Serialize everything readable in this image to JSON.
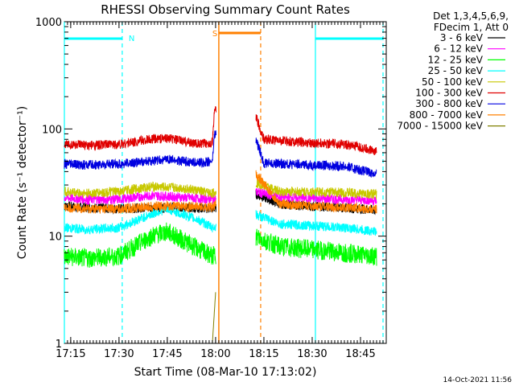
{
  "chart_data": {
    "type": "line",
    "title": "RHESSI Observing Summary Count Rates",
    "xlabel": "Start Time (08-Mar-10 17:13:02)",
    "ylabel": "Count Rate (s⁻¹ detector⁻¹)",
    "y_scale": "log",
    "ylim": [
      1,
      1000
    ],
    "xlim": [
      "17:13:02",
      "18:53:00"
    ],
    "x_ticks": [
      "17:15",
      "17:30",
      "17:45",
      "18:00",
      "18:15",
      "18:30",
      "18:45"
    ],
    "y_ticks": [
      "1",
      "10",
      "100",
      "1000"
    ],
    "legend_header": [
      "Det 1,3,4,5,6,9,",
      "FDecim 1, Att 0"
    ],
    "legend_position": "right",
    "timestamp": "14-Oct-2021 11:56",
    "data_gap": [
      "17:59:30",
      "18:12:30"
    ],
    "night_periods": [
      [
        "17:13:02",
        "17:31:00"
      ],
      [
        "18:31:00",
        "18:52:00"
      ]
    ],
    "annotations": [
      {
        "text": "N",
        "x": "17:31",
        "color": "#00ffff"
      },
      {
        "text": "S",
        "x": "17:59",
        "color": "#ff8000"
      }
    ],
    "series": [
      {
        "name": "3 - 6 keV",
        "color": "#000000",
        "x": [
          "17:13",
          "17:20",
          "17:30",
          "17:40",
          "17:50",
          "17:59",
          "18:12",
          "18:20",
          "18:30",
          "18:40",
          "18:50"
        ],
        "values": [
          19,
          18.5,
          18,
          18.5,
          18.5,
          18,
          25,
          20,
          19,
          18.5,
          17.5
        ]
      },
      {
        "name": "6 - 12 keV",
        "color": "#ff00ff",
        "x": [
          "17:13",
          "17:20",
          "17:30",
          "17:40",
          "17:50",
          "17:59",
          "18:12",
          "18:20",
          "18:30",
          "18:40",
          "18:50"
        ],
        "values": [
          23,
          22,
          22,
          24,
          23,
          22,
          26,
          23,
          22.5,
          22,
          21.5
        ]
      },
      {
        "name": "12 - 25 keV",
        "color": "#00ff00",
        "x": [
          "17:13",
          "17:20",
          "17:30",
          "17:40",
          "17:45",
          "17:55",
          "17:59",
          "18:12",
          "18:20",
          "18:30",
          "18:40",
          "18:50"
        ],
        "values": [
          6.5,
          6.2,
          6.5,
          10,
          11,
          7.5,
          6.5,
          10,
          8,
          7.5,
          7,
          6.5
        ]
      },
      {
        "name": "25 - 50 keV",
        "color": "#00ffff",
        "x": [
          "17:13",
          "17:20",
          "17:30",
          "17:40",
          "17:45",
          "17:55",
          "17:59",
          "18:12",
          "18:20",
          "18:30",
          "18:40",
          "18:50"
        ],
        "values": [
          12,
          11.5,
          12,
          16,
          18,
          14,
          12,
          16,
          13,
          12.5,
          12,
          11
        ]
      },
      {
        "name": "50 - 100 keV",
        "color": "#c8c800",
        "x": [
          "17:13",
          "17:20",
          "17:30",
          "17:40",
          "17:50",
          "17:59",
          "18:12",
          "18:20",
          "18:30",
          "18:40",
          "18:50"
        ],
        "values": [
          26,
          25,
          26,
          29,
          28,
          25,
          32,
          26,
          26,
          25.5,
          24.5
        ]
      },
      {
        "name": "100 - 300 keV",
        "color": "#e00000",
        "x": [
          "17:13",
          "17:20",
          "17:30",
          "17:40",
          "17:45",
          "17:55",
          "17:59",
          "17:59:40",
          "18:12:30",
          "18:15",
          "18:30",
          "18:40",
          "18:50"
        ],
        "values": [
          72,
          70,
          72,
          80,
          82,
          72,
          75,
          150,
          130,
          80,
          74,
          72,
          62
        ]
      },
      {
        "name": "300 - 800 keV",
        "color": "#0000e0",
        "x": [
          "17:13",
          "17:20",
          "17:30",
          "17:40",
          "17:45",
          "17:55",
          "17:59",
          "17:59:40",
          "18:12:30",
          "18:15",
          "18:30",
          "18:40",
          "18:50"
        ],
        "values": [
          47,
          46,
          47,
          50,
          52,
          48,
          50,
          90,
          80,
          48,
          46,
          45,
          38
        ]
      },
      {
        "name": "800 - 7000 keV",
        "color": "#ff8000",
        "x": [
          "17:13",
          "17:20",
          "17:30",
          "17:40",
          "17:50",
          "17:59",
          "18:12",
          "18:20",
          "18:30",
          "18:40",
          "18:50"
        ],
        "values": [
          18.5,
          18,
          18,
          19,
          19,
          18.5,
          40,
          20,
          19,
          18.5,
          18
        ]
      },
      {
        "name": "7000 - 15000 keV",
        "color": "#808000",
        "x": [
          "17:59",
          "18:00"
        ],
        "values": [
          1,
          3
        ]
      }
    ]
  }
}
